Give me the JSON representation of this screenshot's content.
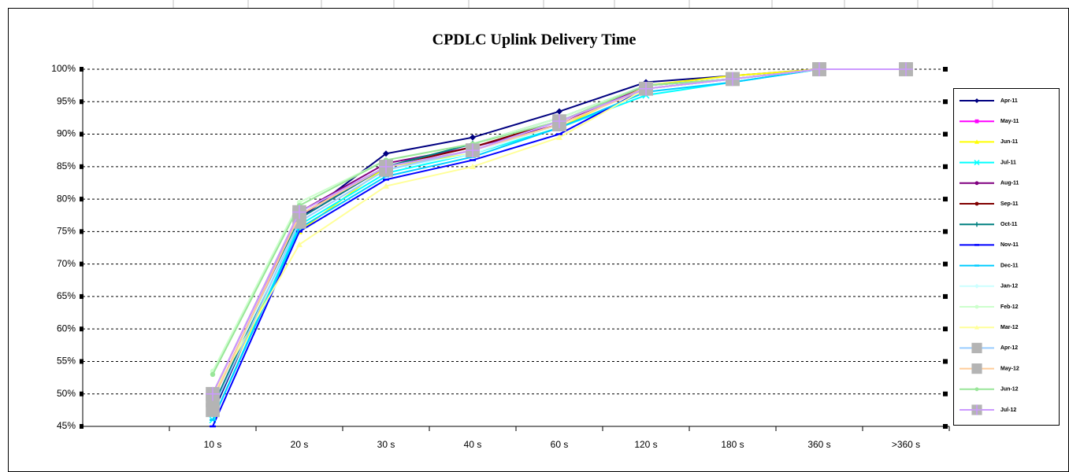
{
  "chart_data": {
    "type": "line",
    "title": "CPDLC Uplink Delivery Time",
    "categories": [
      null,
      "10 s",
      "20 s",
      "30 s",
      "40 s",
      "60 s",
      "120 s",
      "180 s",
      "360 s",
      ">360 s"
    ],
    "ylim": [
      45,
      100
    ],
    "yticks": [
      {
        "value": 45,
        "label": "45%"
      },
      {
        "value": 50,
        "label": "50%"
      },
      {
        "value": 55,
        "label": "55%"
      },
      {
        "value": 60,
        "label": "60%"
      },
      {
        "value": 65,
        "label": "65%"
      },
      {
        "value": 70,
        "label": "70%"
      },
      {
        "value": 75,
        "label": "75%"
      },
      {
        "value": 80,
        "label": "80%"
      },
      {
        "value": 85,
        "label": "85%"
      },
      {
        "value": 90,
        "label": "90%"
      },
      {
        "value": 95,
        "label": "95%"
      },
      {
        "value": 100,
        "label": "100%"
      }
    ],
    "grid": true,
    "legend": "right",
    "series": [
      {
        "name": "Apr-11",
        "color": "#000080",
        "marker": "diamond",
        "values": [
          null,
          47,
          77,
          87,
          89.5,
          93.5,
          98,
          99,
          100,
          100
        ]
      },
      {
        "name": "May-11",
        "color": "#ff00ff",
        "marker": "square",
        "values": [
          null,
          49,
          77,
          85,
          87.5,
          91.5,
          97.5,
          98.5,
          100,
          100
        ]
      },
      {
        "name": "Jun-11",
        "color": "#ffff00",
        "marker": "triangle",
        "values": [
          null,
          48,
          75,
          85,
          87,
          91,
          97.5,
          99,
          100,
          100
        ]
      },
      {
        "name": "Jul-11",
        "color": "#00ffff",
        "marker": "x",
        "values": [
          null,
          46,
          76,
          84,
          87,
          91,
          96,
          98,
          100,
          100
        ]
      },
      {
        "name": "Aug-11",
        "color": "#800080",
        "marker": "circle",
        "values": [
          null,
          50,
          78,
          85.5,
          88,
          91.5,
          97.5,
          98.5,
          100,
          100
        ]
      },
      {
        "name": "Sep-11",
        "color": "#800000",
        "marker": "circle",
        "values": [
          null,
          49,
          77.5,
          85,
          88,
          92,
          97,
          98.5,
          100,
          100
        ]
      },
      {
        "name": "Oct-11",
        "color": "#008080",
        "marker": "plus",
        "values": [
          null,
          48,
          77,
          85,
          88.5,
          92.5,
          97.5,
          98.5,
          100,
          100
        ]
      },
      {
        "name": "Nov-11",
        "color": "#0000ff",
        "marker": "dash",
        "values": [
          null,
          45,
          75,
          83,
          86,
          90,
          97,
          98.5,
          100,
          100
        ]
      },
      {
        "name": "Dec-11",
        "color": "#00ccff",
        "marker": "dash",
        "values": [
          null,
          46,
          75.5,
          83.5,
          86.5,
          91,
          96.5,
          98,
          100,
          100
        ]
      },
      {
        "name": "Jan-12",
        "color": "#ccffff",
        "marker": "diamond",
        "values": [
          null,
          49,
          76.5,
          84.5,
          87,
          91.5,
          97,
          98.5,
          100,
          100
        ]
      },
      {
        "name": "Feb-12",
        "color": "#ccffcc",
        "marker": "circle",
        "values": [
          null,
          53.5,
          79.5,
          86,
          88.5,
          92.5,
          97.5,
          98.5,
          100,
          100
        ]
      },
      {
        "name": "Mar-12",
        "color": "#ffff99",
        "marker": "triangle",
        "values": [
          null,
          50,
          73,
          82,
          85,
          89.5,
          97,
          98.5,
          100,
          100
        ]
      },
      {
        "name": "Apr-12",
        "color": "#99ccff",
        "marker": "bigsquare",
        "values": [
          null,
          47.5,
          76.5,
          84.5,
          87.5,
          91.5,
          97,
          98.5,
          100,
          100
        ]
      },
      {
        "name": "May-12",
        "color": "#ffcc99",
        "marker": "bigsquare",
        "values": [
          null,
          49,
          77.5,
          85,
          87.5,
          91.5,
          97,
          98.5,
          100,
          100
        ]
      },
      {
        "name": "Jun-12",
        "color": "#99e699",
        "marker": "circle",
        "values": [
          null,
          53,
          79,
          86,
          88.5,
          92,
          97.5,
          98.5,
          100,
          100
        ]
      },
      {
        "name": "Jul-12",
        "color": "#cc99ff",
        "marker": "bigsquareplus",
        "values": [
          null,
          50,
          78,
          85,
          87.5,
          92,
          97,
          98.5,
          100,
          100
        ]
      }
    ]
  }
}
